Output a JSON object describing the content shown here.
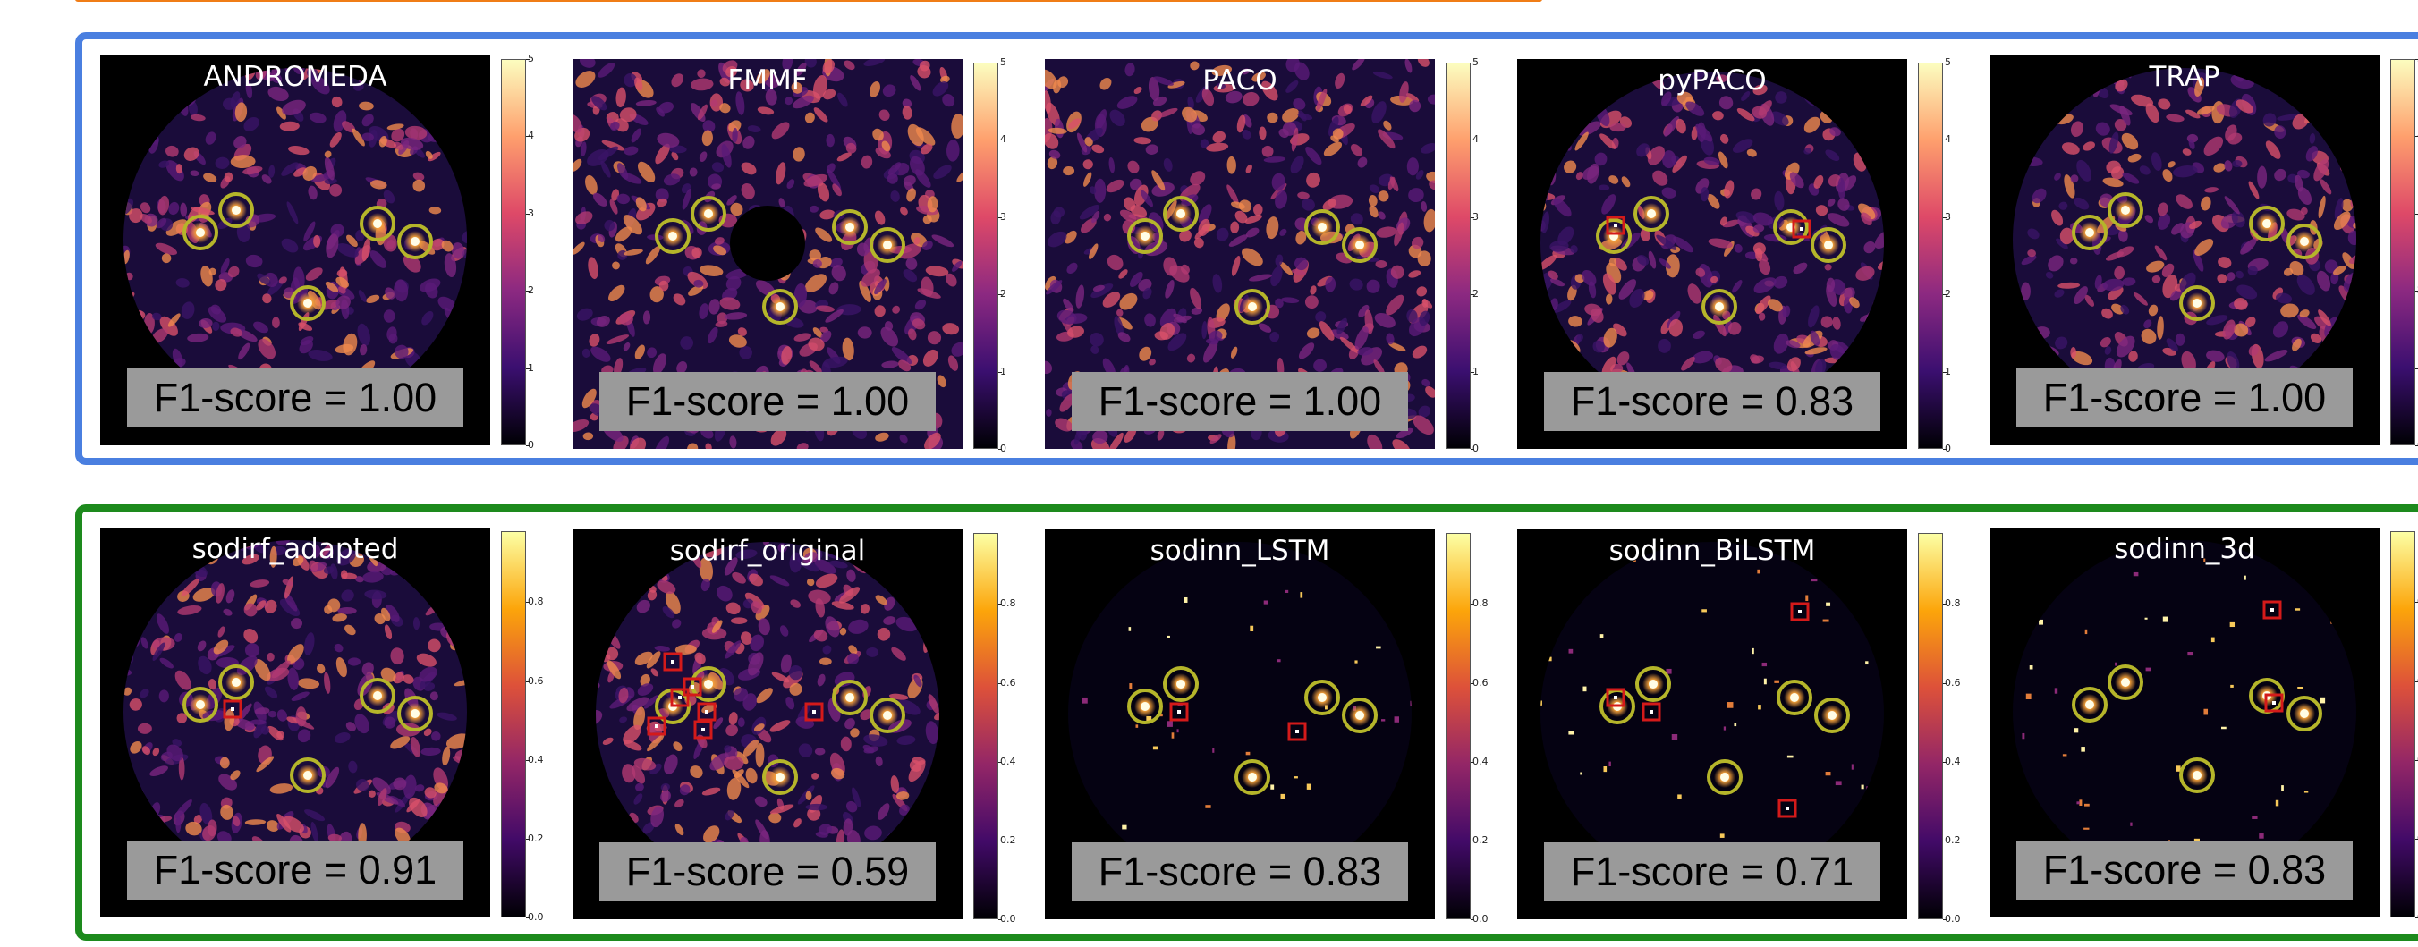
{
  "groups": {
    "top": {
      "colorbar_ticks": [
        "0",
        "1",
        "2",
        "3",
        "4",
        "5"
      ],
      "panels": [
        {
          "title": "ANDROMEDA",
          "score": "F1-score = 1.00"
        },
        {
          "title": "FMMF",
          "score": "F1-score = 1.00"
        },
        {
          "title": "PACO",
          "score": "F1-score = 1.00"
        },
        {
          "title": "pyPACO",
          "score": "F1-score = 0.83"
        },
        {
          "title": "TRAP",
          "score": "F1-score = 1.00"
        }
      ]
    },
    "bottom": {
      "colorbar_ticks": [
        "0.0",
        "0.2",
        "0.4",
        "0.6",
        "0.8"
      ],
      "panels": [
        {
          "title": "sodirf_adapted",
          "score": "F1-score = 0.91"
        },
        {
          "title": "sodirf_original",
          "score": "F1-score = 0.59"
        },
        {
          "title": "sodinn_LSTM",
          "score": "F1-score = 0.83"
        },
        {
          "title": "sodinn_BiLSTM",
          "score": "F1-score = 0.71"
        },
        {
          "title": "sodinn_3d",
          "score": "F1-score = 0.83"
        }
      ]
    }
  },
  "colors": {
    "top_frame": "#4a7fe0",
    "bottom_frame": "#1d8a1d",
    "orange_bar": "#f07d17",
    "true_positive_circle": "#b5b52a",
    "false_positive_square": "#d41a1a"
  }
}
